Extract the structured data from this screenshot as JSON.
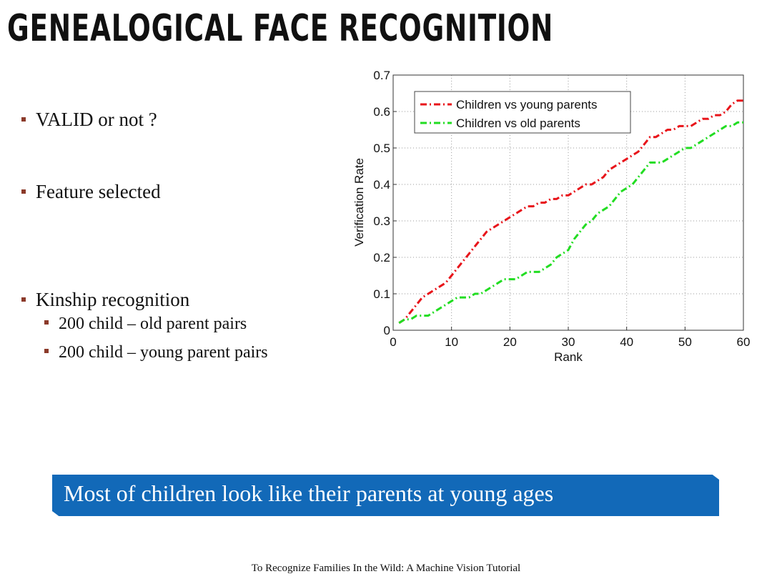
{
  "slide": {
    "title": "GENEALOGICAL FACE RECOGNITION",
    "bullets": [
      {
        "text": "VALID or not ?",
        "level": 1
      },
      {
        "text": "Feature selected",
        "level": 1
      },
      {
        "text": "Kinship recognition",
        "level": 1
      },
      {
        "text": "200 child – old parent pairs",
        "level": 2
      },
      {
        "text": "200 child – young parent pairs",
        "level": 2
      }
    ],
    "banner": "Most of children look like their parents at young ages",
    "footer": "To Recognize Families In the Wild: A Machine Vision Tutorial",
    "accent_color": "#1269b8",
    "bullet_color": "#8b3a2a"
  },
  "chart_data": {
    "type": "line",
    "title": "",
    "xlabel": "Rank",
    "ylabel": "Verification Rate",
    "xlim": [
      0,
      60
    ],
    "ylim": [
      0,
      0.7
    ],
    "xticks": [
      0,
      10,
      20,
      30,
      40,
      50,
      60
    ],
    "yticks": [
      0,
      0.1,
      0.2,
      0.3,
      0.4,
      0.5,
      0.6,
      0.7
    ],
    "ytick_labels": [
      "0",
      "0.1",
      "0.2",
      "0.3",
      "0.4",
      "0.5",
      "0.6",
      "0.7"
    ],
    "grid": true,
    "legend_position": "top-left",
    "x": [
      1,
      2,
      3,
      4,
      5,
      6,
      7,
      8,
      9,
      10,
      11,
      12,
      13,
      14,
      15,
      16,
      17,
      18,
      19,
      20,
      21,
      22,
      23,
      24,
      25,
      26,
      27,
      28,
      29,
      30,
      31,
      32,
      33,
      34,
      35,
      36,
      37,
      38,
      39,
      40,
      41,
      42,
      43,
      44,
      45,
      46,
      47,
      48,
      49,
      50,
      51,
      52,
      53,
      54,
      55,
      56,
      57,
      58,
      59,
      60
    ],
    "series": [
      {
        "name": "Children vs young parents",
        "color": "#e8141a",
        "values": [
          0.02,
          0.03,
          0.05,
          0.07,
          0.09,
          0.1,
          0.11,
          0.12,
          0.13,
          0.15,
          0.17,
          0.19,
          0.21,
          0.23,
          0.25,
          0.27,
          0.28,
          0.29,
          0.3,
          0.31,
          0.32,
          0.33,
          0.34,
          0.34,
          0.35,
          0.35,
          0.36,
          0.36,
          0.37,
          0.37,
          0.38,
          0.39,
          0.4,
          0.4,
          0.41,
          0.42,
          0.44,
          0.45,
          0.46,
          0.47,
          0.48,
          0.49,
          0.51,
          0.53,
          0.53,
          0.54,
          0.55,
          0.55,
          0.56,
          0.56,
          0.56,
          0.57,
          0.58,
          0.58,
          0.59,
          0.59,
          0.6,
          0.62,
          0.63,
          0.63
        ]
      },
      {
        "name": "Children vs old parents",
        "color": "#22dd22",
        "values": [
          0.02,
          0.03,
          0.03,
          0.04,
          0.04,
          0.04,
          0.05,
          0.06,
          0.07,
          0.08,
          0.09,
          0.09,
          0.09,
          0.1,
          0.1,
          0.11,
          0.12,
          0.13,
          0.14,
          0.14,
          0.14,
          0.15,
          0.16,
          0.16,
          0.16,
          0.17,
          0.18,
          0.2,
          0.21,
          0.22,
          0.25,
          0.27,
          0.29,
          0.3,
          0.32,
          0.33,
          0.34,
          0.36,
          0.38,
          0.39,
          0.4,
          0.42,
          0.44,
          0.46,
          0.46,
          0.46,
          0.47,
          0.48,
          0.49,
          0.5,
          0.5,
          0.51,
          0.52,
          0.53,
          0.54,
          0.55,
          0.56,
          0.56,
          0.57,
          0.57
        ]
      }
    ]
  }
}
